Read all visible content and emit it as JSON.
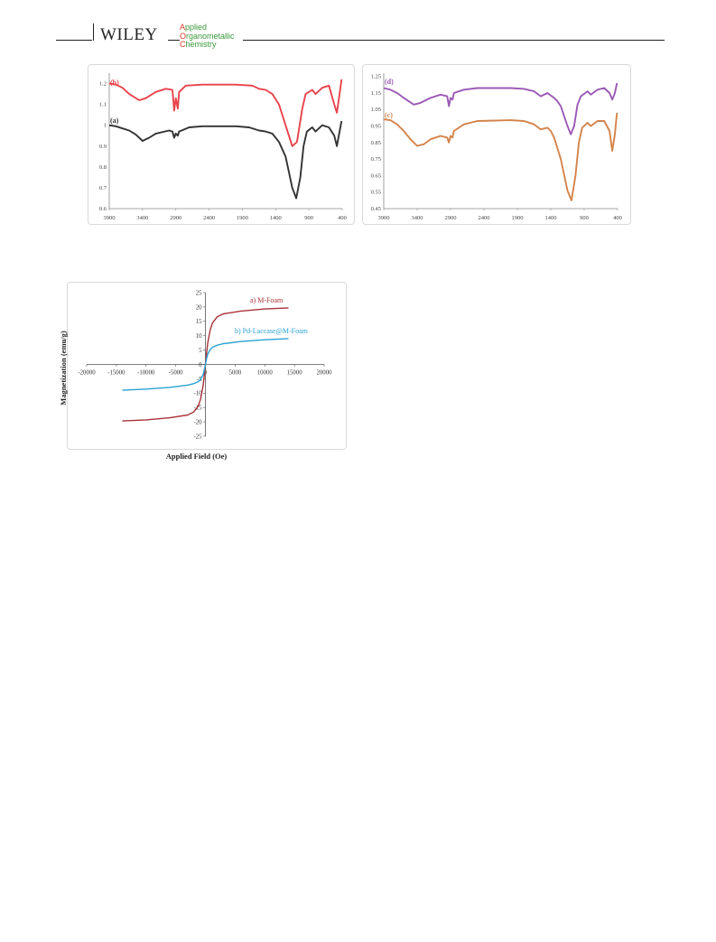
{
  "header": {
    "publisher": "WILEY",
    "journal_lines": [
      {
        "cap": "A",
        "rest": "pplied"
      },
      {
        "cap": "O",
        "rest": "rganometallic"
      },
      {
        "cap": "C",
        "rest": "hemistry"
      }
    ]
  },
  "colors": {
    "ftir_a": "#333333",
    "ftir_b": "#e8434b",
    "ftir_c": "#d4834a",
    "ftir_d": "#9b59b6",
    "vsm_a": "#a8323a",
    "vsm_b": "#2aa2d6"
  },
  "chart_data": [
    {
      "type": "line",
      "title": "",
      "xlabel": "",
      "ylabel": "",
      "xlim": [
        3900,
        400
      ],
      "ylim": [
        0.6,
        1.25
      ],
      "x_ticks": [
        "3900",
        "3400",
        "2900",
        "2400",
        "1900",
        "1400",
        "900",
        "400"
      ],
      "y_ticks": [
        "0.6",
        "0.7",
        "0.8",
        "0.9",
        "1",
        "1.1",
        "1.2"
      ],
      "grid": "none",
      "series": [
        {
          "name": "(b)",
          "points": [
            [
              3900,
              1.2
            ],
            [
              3800,
              1.195
            ],
            [
              3700,
              1.18
            ],
            [
              3600,
              1.15
            ],
            [
              3450,
              1.12
            ],
            [
              3350,
              1.13
            ],
            [
              3200,
              1.16
            ],
            [
              3050,
              1.175
            ],
            [
              2950,
              1.17
            ],
            [
              2925,
              1.07
            ],
            [
              2900,
              1.13
            ],
            [
              2870,
              1.08
            ],
            [
              2850,
              1.16
            ],
            [
              2750,
              1.19
            ],
            [
              2500,
              1.195
            ],
            [
              2000,
              1.195
            ],
            [
              1750,
              1.19
            ],
            [
              1650,
              1.175
            ],
            [
              1550,
              1.17
            ],
            [
              1450,
              1.15
            ],
            [
              1350,
              1.1
            ],
            [
              1250,
              1.0
            ],
            [
              1150,
              0.9
            ],
            [
              1080,
              0.92
            ],
            [
              1000,
              1.08
            ],
            [
              950,
              1.15
            ],
            [
              850,
              1.17
            ],
            [
              800,
              1.15
            ],
            [
              700,
              1.18
            ],
            [
              600,
              1.19
            ],
            [
              520,
              1.1
            ],
            [
              480,
              1.06
            ],
            [
              440,
              1.15
            ],
            [
              410,
              1.22
            ]
          ]
        },
        {
          "name": "(a)",
          "points": [
            [
              3900,
              1.0
            ],
            [
              3800,
              0.995
            ],
            [
              3700,
              0.985
            ],
            [
              3600,
              0.975
            ],
            [
              3500,
              0.955
            ],
            [
              3400,
              0.925
            ],
            [
              3300,
              0.94
            ],
            [
              3200,
              0.96
            ],
            [
              3000,
              0.975
            ],
            [
              2950,
              0.97
            ],
            [
              2925,
              0.94
            ],
            [
              2900,
              0.96
            ],
            [
              2870,
              0.95
            ],
            [
              2850,
              0.97
            ],
            [
              2700,
              0.99
            ],
            [
              2500,
              0.995
            ],
            [
              2000,
              0.995
            ],
            [
              1800,
              0.99
            ],
            [
              1650,
              0.975
            ],
            [
              1550,
              0.97
            ],
            [
              1450,
              0.96
            ],
            [
              1350,
              0.92
            ],
            [
              1250,
              0.85
            ],
            [
              1150,
              0.7
            ],
            [
              1090,
              0.65
            ],
            [
              1030,
              0.75
            ],
            [
              980,
              0.9
            ],
            [
              930,
              0.97
            ],
            [
              850,
              0.99
            ],
            [
              800,
              0.97
            ],
            [
              700,
              1.0
            ],
            [
              600,
              0.99
            ],
            [
              520,
              0.95
            ],
            [
              480,
              0.9
            ],
            [
              440,
              0.97
            ],
            [
              410,
              1.02
            ]
          ]
        }
      ]
    },
    {
      "type": "line",
      "title": "",
      "xlabel": "",
      "ylabel": "",
      "xlim": [
        3900,
        400
      ],
      "ylim": [
        0.45,
        1.27
      ],
      "x_ticks": [
        "3900",
        "3400",
        "2900",
        "2400",
        "1900",
        "1400",
        "900",
        "400"
      ],
      "y_ticks": [
        "0.45",
        "0.55",
        "0.65",
        "0.75",
        "0.85",
        "0.95",
        "1.05",
        "1.15",
        "1.25"
      ],
      "grid": "none",
      "series": [
        {
          "name": "(d)",
          "points": [
            [
              3900,
              1.18
            ],
            [
              3800,
              1.17
            ],
            [
              3700,
              1.15
            ],
            [
              3600,
              1.12
            ],
            [
              3450,
              1.08
            ],
            [
              3350,
              1.09
            ],
            [
              3200,
              1.12
            ],
            [
              3050,
              1.14
            ],
            [
              2950,
              1.13
            ],
            [
              2925,
              1.07
            ],
            [
              2900,
              1.12
            ],
            [
              2870,
              1.11
            ],
            [
              2850,
              1.15
            ],
            [
              2700,
              1.17
            ],
            [
              2500,
              1.18
            ],
            [
              2000,
              1.18
            ],
            [
              1800,
              1.175
            ],
            [
              1650,
              1.16
            ],
            [
              1550,
              1.13
            ],
            [
              1450,
              1.15
            ],
            [
              1350,
              1.12
            ],
            [
              1300,
              1.1
            ],
            [
              1250,
              1.07
            ],
            [
              1150,
              0.95
            ],
            [
              1100,
              0.9
            ],
            [
              1050,
              0.95
            ],
            [
              1000,
              1.08
            ],
            [
              950,
              1.13
            ],
            [
              850,
              1.16
            ],
            [
              800,
              1.14
            ],
            [
              700,
              1.17
            ],
            [
              600,
              1.18
            ],
            [
              520,
              1.15
            ],
            [
              480,
              1.11
            ],
            [
              440,
              1.15
            ],
            [
              410,
              1.21
            ]
          ]
        },
        {
          "name": "(c)",
          "points": [
            [
              3900,
              0.99
            ],
            [
              3800,
              0.985
            ],
            [
              3700,
              0.96
            ],
            [
              3600,
              0.92
            ],
            [
              3500,
              0.87
            ],
            [
              3400,
              0.83
            ],
            [
              3300,
              0.84
            ],
            [
              3200,
              0.87
            ],
            [
              3050,
              0.89
            ],
            [
              2950,
              0.88
            ],
            [
              2925,
              0.85
            ],
            [
              2900,
              0.89
            ],
            [
              2870,
              0.88
            ],
            [
              2850,
              0.92
            ],
            [
              2700,
              0.96
            ],
            [
              2500,
              0.98
            ],
            [
              2000,
              0.985
            ],
            [
              1800,
              0.98
            ],
            [
              1650,
              0.96
            ],
            [
              1550,
              0.93
            ],
            [
              1450,
              0.94
            ],
            [
              1400,
              0.92
            ],
            [
              1350,
              0.88
            ],
            [
              1250,
              0.75
            ],
            [
              1150,
              0.56
            ],
            [
              1090,
              0.5
            ],
            [
              1030,
              0.65
            ],
            [
              980,
              0.85
            ],
            [
              930,
              0.94
            ],
            [
              850,
              0.97
            ],
            [
              800,
              0.95
            ],
            [
              700,
              0.98
            ],
            [
              600,
              0.98
            ],
            [
              520,
              0.92
            ],
            [
              480,
              0.8
            ],
            [
              440,
              0.9
            ],
            [
              410,
              1.03
            ]
          ]
        }
      ]
    },
    {
      "type": "line",
      "title": "",
      "xlabel": "Applied Field (Oe)",
      "ylabel": "Magnetization (emu/g)",
      "xlim": [
        -20000,
        20000
      ],
      "ylim": [
        -25,
        25
      ],
      "x_ticks": [
        "-20000",
        "-15000",
        "-10000",
        "-5000",
        "0",
        "5000",
        "10000",
        "15000",
        "20000"
      ],
      "y_ticks": [
        "-25",
        "-20",
        "-15",
        "-10",
        "-5",
        "0",
        "5",
        "10",
        "15",
        "20",
        "25"
      ],
      "grid": "none",
      "series": [
        {
          "name": "a) M-Foam",
          "points": [
            [
              -14000,
              -19.7
            ],
            [
              -10000,
              -19.3
            ],
            [
              -6000,
              -18.6
            ],
            [
              -3000,
              -17.6
            ],
            [
              -2000,
              -16.6
            ],
            [
              -1200,
              -14.5
            ],
            [
              -800,
              -12
            ],
            [
              -400,
              -7.5
            ],
            [
              -200,
              -4
            ],
            [
              0,
              0
            ],
            [
              200,
              4
            ],
            [
              400,
              7.5
            ],
            [
              800,
              12
            ],
            [
              1200,
              14.5
            ],
            [
              2000,
              16.6
            ],
            [
              3000,
              17.6
            ],
            [
              6000,
              18.6
            ],
            [
              10000,
              19.3
            ],
            [
              14000,
              19.7
            ]
          ]
        },
        {
          "name": "b) Pd-Laccase@M-Foam",
          "points": [
            [
              -14000,
              -9.0
            ],
            [
              -10000,
              -8.6
            ],
            [
              -6000,
              -8.0
            ],
            [
              -3000,
              -7.2
            ],
            [
              -2000,
              -6.7
            ],
            [
              -1200,
              -6.0
            ],
            [
              -800,
              -5.2
            ],
            [
              -400,
              -3.6
            ],
            [
              -200,
              -2
            ],
            [
              0,
              0
            ],
            [
              200,
              2
            ],
            [
              400,
              3.6
            ],
            [
              800,
              5.2
            ],
            [
              1200,
              6.0
            ],
            [
              2000,
              6.7
            ],
            [
              3000,
              7.2
            ],
            [
              6000,
              8.0
            ],
            [
              10000,
              8.6
            ],
            [
              14000,
              9.0
            ]
          ]
        }
      ]
    }
  ]
}
